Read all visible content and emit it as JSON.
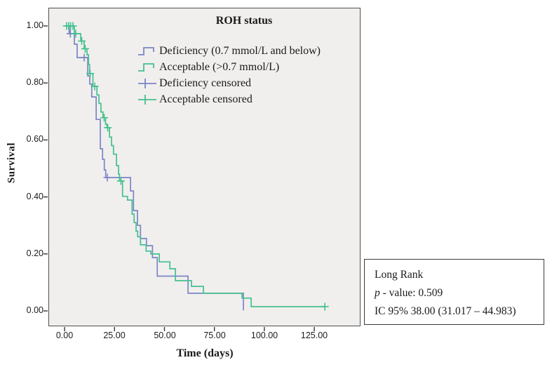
{
  "colors": {
    "plot_background": "#f0efed",
    "frame": "#4f4f4f",
    "deficiency_blue": "#7b85c7",
    "acceptable_green": "#44c08e"
  },
  "chart_data": {
    "type": "line",
    "subtype": "kaplan-meier-step-survival",
    "title": "ROH status",
    "xlabel": "Time (days)",
    "ylabel": "Survival",
    "grid": false,
    "xlim": [
      -8.1,
      148.15
    ],
    "ylim": [
      -0.054,
      1.064
    ],
    "x_ticks": [
      0,
      25,
      50,
      75,
      100,
      125
    ],
    "x_tick_labels": [
      "0.00",
      "25.00",
      "50.00",
      "75.00",
      "100.00",
      "125.00"
    ],
    "y_ticks": [
      1.0,
      0.8,
      0.6,
      0.4,
      0.2,
      0.0
    ],
    "y_tick_labels": [
      "1.00",
      "0.80",
      "0.60",
      "0.40",
      "0.20",
      "0.00"
    ],
    "legend": {
      "position": "top-center-inside",
      "title": "ROH status"
    },
    "series": [
      {
        "name": "Deficiency (0.7 mmol/L and below)",
        "censored_name": "Deficiency censored",
        "color": "#7b85c7",
        "steps": [
          [
            0,
            1.0
          ],
          [
            2.3,
            0.973
          ],
          [
            4.9,
            0.936
          ],
          [
            6.3,
            0.889
          ],
          [
            11.6,
            0.825
          ],
          [
            12.6,
            0.796
          ],
          [
            13.6,
            0.751
          ],
          [
            15.8,
            0.672
          ],
          [
            17.9,
            0.569
          ],
          [
            19.0,
            0.532
          ],
          [
            19.9,
            0.495
          ],
          [
            20.6,
            0.468
          ],
          [
            33.0,
            0.421
          ],
          [
            34.5,
            0.352
          ],
          [
            36.5,
            0.3
          ],
          [
            38.0,
            0.254
          ],
          [
            41.0,
            0.229
          ],
          [
            44.0,
            0.187
          ],
          [
            46.4,
            0.122
          ],
          [
            61.8,
            0.062
          ],
          [
            89.5,
            0.002
          ]
        ],
        "censored": [
          [
            2.9,
            0.973
          ],
          [
            9.8,
            0.889
          ],
          [
            21.4,
            0.468
          ]
        ]
      },
      {
        "name": "Acceptable (>0.7 mmol/L)",
        "censored_name": "Acceptable censored",
        "color": "#44c08e",
        "steps": [
          [
            0,
            1.0
          ],
          [
            4.9,
            0.973
          ],
          [
            8.1,
            0.947
          ],
          [
            9.8,
            0.92
          ],
          [
            11.2,
            0.899
          ],
          [
            12.0,
            0.865
          ],
          [
            12.5,
            0.833
          ],
          [
            14.2,
            0.788
          ],
          [
            16.2,
            0.758
          ],
          [
            17.2,
            0.728
          ],
          [
            18.2,
            0.698
          ],
          [
            19.2,
            0.678
          ],
          [
            20.5,
            0.655
          ],
          [
            21.2,
            0.643
          ],
          [
            22.5,
            0.61
          ],
          [
            23.5,
            0.58
          ],
          [
            24.5,
            0.55
          ],
          [
            26.0,
            0.51
          ],
          [
            27.0,
            0.48
          ],
          [
            27.5,
            0.456
          ],
          [
            29.0,
            0.402
          ],
          [
            31.5,
            0.389
          ],
          [
            33.8,
            0.34
          ],
          [
            34.8,
            0.31
          ],
          [
            35.8,
            0.28
          ],
          [
            36.6,
            0.26
          ],
          [
            38.0,
            0.232
          ],
          [
            40.8,
            0.21
          ],
          [
            43.2,
            0.2
          ],
          [
            47.4,
            0.172
          ],
          [
            52.7,
            0.148
          ],
          [
            55.5,
            0.106
          ],
          [
            63.5,
            0.086
          ],
          [
            69.5,
            0.062
          ],
          [
            88.8,
            0.045
          ],
          [
            93.4,
            0.015
          ]
        ],
        "censored": [
          [
            1.0,
            1.0
          ],
          [
            2.0,
            1.0
          ],
          [
            3.0,
            1.0
          ],
          [
            4.2,
            1.0
          ],
          [
            5.6,
            0.973
          ],
          [
            8.6,
            0.947
          ],
          [
            10.3,
            0.92
          ],
          [
            12.8,
            0.833
          ],
          [
            15.1,
            0.788
          ],
          [
            19.8,
            0.678
          ],
          [
            21.6,
            0.643
          ],
          [
            28.2,
            0.456
          ],
          [
            130.3,
            0.015
          ]
        ],
        "run_out_to": 130.3
      }
    ]
  },
  "stats_box": {
    "test_name": "Long Rank",
    "p_label": "p",
    "p_rest": " - value: 0.509",
    "ci_line": "IC 95% 38.00 (31.017 – 44.983)"
  }
}
